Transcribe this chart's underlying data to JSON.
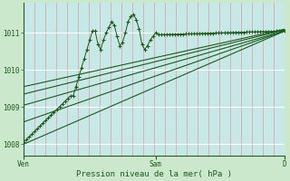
{
  "bg_color": "#cce8cc",
  "plot_bg_color": "#c8e8e8",
  "grid_v_color": "#d4a0a0",
  "grid_h_color": "#ffffff",
  "line_color": "#1a5c1a",
  "ylim": [
    1007.7,
    1011.8
  ],
  "yticks": [
    1008,
    1009,
    1010,
    1011
  ],
  "xlabel": "Pression niveau de la mer( hPa )",
  "xlabel_color": "#1a5c1a",
  "xtick_labels": [
    "Ven",
    "Sam",
    "D"
  ],
  "xtick_positions": [
    0,
    48,
    95
  ],
  "n_points": 96,
  "figsize": [
    3.2,
    2.0
  ],
  "dpi": 100
}
